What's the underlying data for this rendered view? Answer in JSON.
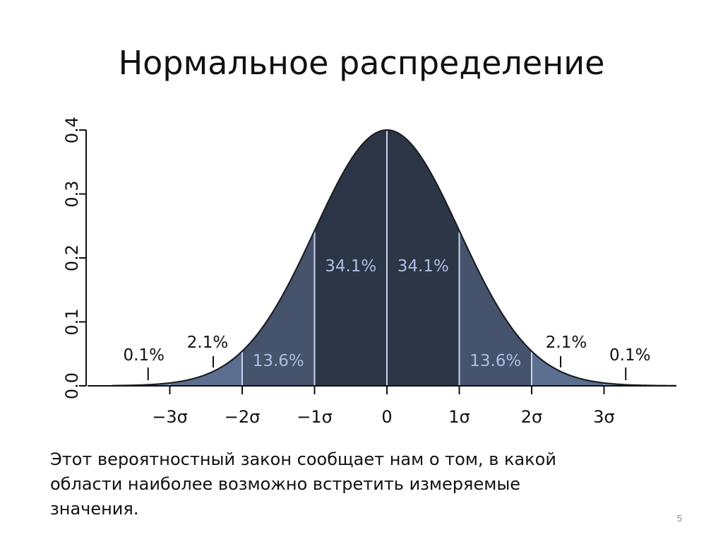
{
  "slide": {
    "title": "Нормальное распределение",
    "caption_lines": [
      "Этот вероятностный закон сообщает нам о том, в какой",
      "области наиболее возможно встретить измеряемые",
      "значения."
    ],
    "page_number": "5"
  },
  "chart_data": {
    "type": "area",
    "distribution": "normal",
    "mean": 0,
    "sd": 1,
    "xlim": [
      -3.8,
      4.0
    ],
    "ylim": [
      0,
      0.4
    ],
    "y_ticks": [
      0.0,
      0.1,
      0.2,
      0.3,
      0.4
    ],
    "y_tick_labels": [
      "0.0",
      "0.1",
      "0.2",
      "0.3",
      "0.4"
    ],
    "x_ticks": [
      -3,
      -2,
      -1,
      0,
      1,
      2,
      3
    ],
    "x_tick_labels": [
      "−3σ",
      "−2σ",
      "−1σ",
      "0",
      "1σ",
      "2σ",
      "3σ"
    ],
    "grid": false,
    "bands": [
      {
        "from": -3,
        "to": -2,
        "label": "2.1%",
        "label_position": "outside"
      },
      {
        "from": -2,
        "to": -1,
        "label": "13.6%",
        "label_position": "inside"
      },
      {
        "from": -1,
        "to": 0,
        "label": "34.1%",
        "label_position": "inside"
      },
      {
        "from": 0,
        "to": 1,
        "label": "34.1%",
        "label_position": "inside"
      },
      {
        "from": 1,
        "to": 2,
        "label": "13.6%",
        "label_position": "inside"
      },
      {
        "from": 2,
        "to": 3,
        "label": "2.1%",
        "label_position": "outside"
      }
    ],
    "tail_labels": [
      {
        "side": "left",
        "label": "0.1%"
      },
      {
        "side": "right",
        "label": "0.1%"
      }
    ],
    "colors": {
      "center": "#2d3646",
      "one_sigma": "#45536c",
      "two_sigma": "#5d6f90",
      "tail": "#7a8fb5",
      "divider": "#c9d5ee",
      "inner_label": "#aebde2",
      "curve": "#1c1f26",
      "axis": "#111111"
    }
  }
}
